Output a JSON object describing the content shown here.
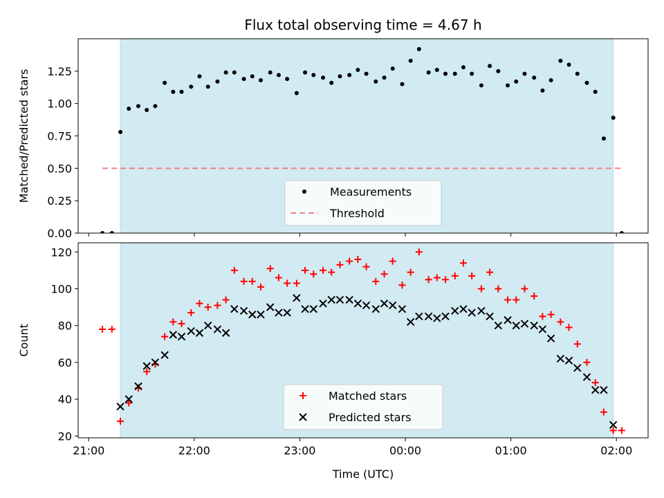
{
  "figure": {
    "title": "Flux total observing time = 4.67 h",
    "xlabel": "Time (UTC)",
    "x_tick_labels": [
      "21:00",
      "22:00",
      "23:00",
      "00:00",
      "01:00",
      "02:00"
    ]
  },
  "colors": {
    "shade": "#add8e6",
    "measurements": "#000000",
    "threshold": "#f08080",
    "matched": "#ff0000",
    "predicted": "#000000"
  },
  "chart_data": [
    {
      "type": "scatter",
      "panel": "top",
      "ylabel": "Matched/Predicted stars",
      "ylim": [
        0,
        1.5
      ],
      "y_ticks": [
        0.0,
        0.25,
        0.5,
        0.75,
        1.0,
        1.25
      ],
      "y_tick_labels": [
        "0.00",
        "0.25",
        "0.50",
        "0.75",
        "1.00",
        "1.25"
      ],
      "x_units": "hours since 21:00 UTC",
      "xlim": [
        -0.1,
        5.3
      ],
      "shaded_span": [
        0.3,
        4.97
      ],
      "legend": {
        "placement": "lower center",
        "entries": [
          "Measurements",
          "Threshold"
        ]
      },
      "threshold": {
        "name": "Threshold",
        "y": 0.5,
        "x_range": [
          0.13,
          5.05
        ]
      },
      "series": [
        {
          "name": "Measurements",
          "x": [
            0.13,
            0.22,
            0.3,
            0.38,
            0.47,
            0.55,
            0.63,
            0.72,
            0.8,
            0.88,
            0.97,
            1.05,
            1.13,
            1.22,
            1.3,
            1.38,
            1.47,
            1.55,
            1.63,
            1.72,
            1.8,
            1.88,
            1.97,
            2.05,
            2.13,
            2.22,
            2.3,
            2.38,
            2.47,
            2.55,
            2.63,
            2.72,
            2.8,
            2.88,
            2.97,
            3.05,
            3.13,
            3.22,
            3.3,
            3.38,
            3.47,
            3.55,
            3.63,
            3.72,
            3.8,
            3.88,
            3.97,
            4.05,
            4.13,
            4.22,
            4.3,
            4.38,
            4.47,
            4.55,
            4.63,
            4.72,
            4.8,
            4.88,
            4.97,
            5.05
          ],
          "y": [
            0.0,
            0.0,
            0.78,
            0.96,
            0.98,
            0.95,
            0.98,
            1.16,
            1.09,
            1.09,
            1.13,
            1.21,
            1.13,
            1.17,
            1.24,
            1.24,
            1.19,
            1.21,
            1.18,
            1.24,
            1.22,
            1.19,
            1.08,
            1.24,
            1.22,
            1.2,
            1.16,
            1.21,
            1.22,
            1.26,
            1.23,
            1.17,
            1.2,
            1.27,
            1.15,
            1.33,
            1.42,
            1.24,
            1.26,
            1.23,
            1.23,
            1.28,
            1.23,
            1.14,
            1.29,
            1.25,
            1.14,
            1.17,
            1.23,
            1.2,
            1.1,
            1.18,
            1.33,
            1.3,
            1.23,
            1.16,
            1.09,
            0.73,
            0.89,
            0.0
          ]
        }
      ]
    },
    {
      "type": "scatter",
      "panel": "bottom",
      "ylabel": "Count",
      "ylim": [
        19,
        125
      ],
      "y_ticks": [
        20,
        40,
        60,
        80,
        100,
        120
      ],
      "y_tick_labels": [
        "20",
        "40",
        "60",
        "80",
        "100",
        "120"
      ],
      "x_units": "hours since 21:00 UTC",
      "xlim": [
        -0.1,
        5.3
      ],
      "shaded_span": [
        0.3,
        4.97
      ],
      "legend": {
        "placement": "lower center",
        "entries": [
          "Matched stars",
          "Predicted stars"
        ]
      },
      "series": [
        {
          "name": "Matched stars",
          "marker": "plus",
          "x": [
            0.13,
            0.22,
            0.3,
            0.38,
            0.47,
            0.55,
            0.63,
            0.72,
            0.8,
            0.88,
            0.97,
            1.05,
            1.13,
            1.22,
            1.3,
            1.38,
            1.47,
            1.55,
            1.63,
            1.72,
            1.8,
            1.88,
            1.97,
            2.05,
            2.13,
            2.22,
            2.3,
            2.38,
            2.47,
            2.55,
            2.63,
            2.72,
            2.8,
            2.88,
            2.97,
            3.05,
            3.13,
            3.22,
            3.3,
            3.38,
            3.47,
            3.55,
            3.63,
            3.72,
            3.8,
            3.88,
            3.97,
            4.05,
            4.13,
            4.22,
            4.3,
            4.38,
            4.47,
            4.55,
            4.63,
            4.72,
            4.8,
            4.88,
            4.97,
            5.05
          ],
          "y": [
            78,
            78,
            28,
            38,
            46,
            55,
            59,
            74,
            82,
            81,
            87,
            92,
            90,
            91,
            94,
            110,
            104,
            104,
            101,
            111,
            106,
            103,
            103,
            110,
            108,
            110,
            109,
            113,
            115,
            116,
            112,
            104,
            108,
            115,
            102,
            109,
            120,
            105,
            106,
            105,
            107,
            114,
            107,
            100,
            109,
            100,
            94,
            94,
            100,
            96,
            85,
            86,
            82,
            79,
            70,
            60,
            49,
            33,
            23,
            23
          ]
        },
        {
          "name": "Predicted stars",
          "marker": "x",
          "x": [
            0.3,
            0.38,
            0.47,
            0.55,
            0.63,
            0.72,
            0.8,
            0.88,
            0.97,
            1.05,
            1.13,
            1.22,
            1.3,
            1.38,
            1.47,
            1.55,
            1.63,
            1.72,
            1.8,
            1.88,
            1.97,
            2.05,
            2.13,
            2.22,
            2.3,
            2.38,
            2.47,
            2.55,
            2.63,
            2.72,
            2.8,
            2.88,
            2.97,
            3.05,
            3.13,
            3.22,
            3.3,
            3.38,
            3.47,
            3.55,
            3.63,
            3.72,
            3.8,
            3.88,
            3.97,
            4.05,
            4.13,
            4.22,
            4.3,
            4.38,
            4.47,
            4.55,
            4.63,
            4.72,
            4.8,
            4.88,
            4.97
          ],
          "y": [
            36,
            40,
            47,
            58,
            60,
            64,
            75,
            74,
            77,
            76,
            80,
            78,
            76,
            89,
            88,
            86,
            86,
            90,
            87,
            87,
            95,
            89,
            89,
            92,
            94,
            94,
            94,
            92,
            91,
            89,
            92,
            91,
            89,
            82,
            85,
            85,
            84,
            85,
            88,
            89,
            87,
            88,
            85,
            80,
            83,
            80,
            81,
            80,
            78,
            73,
            62,
            61,
            57,
            52,
            45,
            45,
            26
          ]
        }
      ]
    }
  ]
}
